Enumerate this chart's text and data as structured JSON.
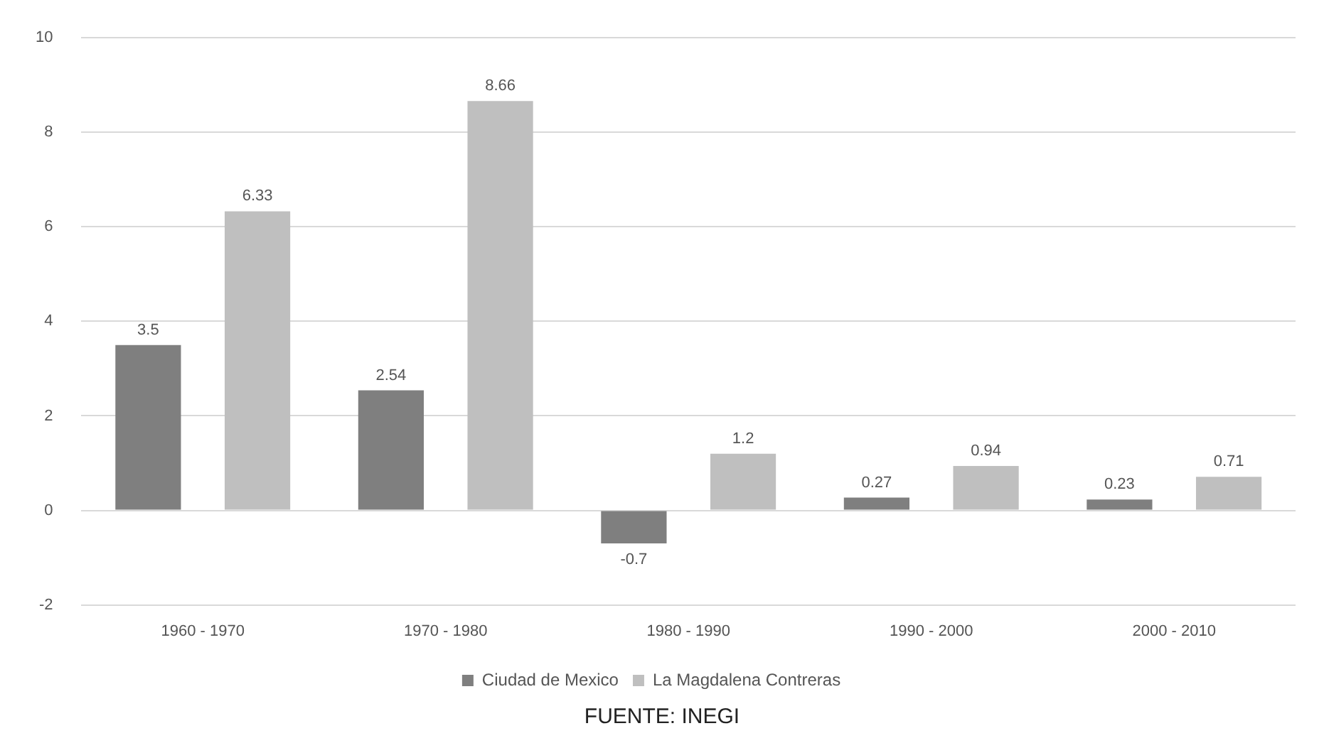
{
  "chart_data": {
    "type": "bar",
    "categories": [
      "1960 - 1970",
      "1970 - 1980",
      "1980 - 1990",
      "1990 - 2000",
      "2000 - 2010"
    ],
    "series": [
      {
        "name": "Ciudad de Mexico",
        "color": "#7f7f7f",
        "values": [
          3.5,
          2.54,
          -0.7,
          0.27,
          0.23
        ]
      },
      {
        "name": "La Magdalena Contreras",
        "color": "#bfbfbf",
        "values": [
          6.33,
          8.66,
          1.2,
          0.94,
          0.71
        ]
      }
    ],
    "ylim": [
      -2,
      10
    ],
    "yticks": [
      -2,
      0,
      2,
      4,
      6,
      8,
      10
    ],
    "grid": "y",
    "legend": "bottom",
    "data_labels": true,
    "annotations": [
      "FUENTE: INEGI"
    ]
  }
}
